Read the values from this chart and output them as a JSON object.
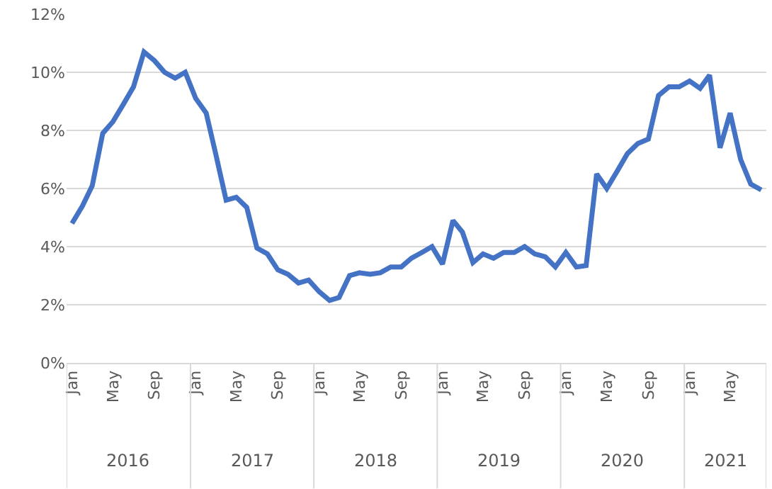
{
  "chart_data": {
    "type": "line",
    "x": [
      "2016-01",
      "2016-02",
      "2016-03",
      "2016-04",
      "2016-05",
      "2016-06",
      "2016-07",
      "2016-08",
      "2016-09",
      "2016-10",
      "2016-11",
      "2016-12",
      "2017-01",
      "2017-02",
      "2017-03",
      "2017-04",
      "2017-05",
      "2017-06",
      "2017-07",
      "2017-08",
      "2017-09",
      "2017-10",
      "2017-11",
      "2017-12",
      "2018-01",
      "2018-02",
      "2018-03",
      "2018-04",
      "2018-05",
      "2018-06",
      "2018-07",
      "2018-08",
      "2018-09",
      "2018-10",
      "2018-11",
      "2018-12",
      "2019-01",
      "2019-02",
      "2019-03",
      "2019-04",
      "2019-05",
      "2019-06",
      "2019-07",
      "2019-08",
      "2019-09",
      "2019-10",
      "2019-11",
      "2019-12",
      "2020-01",
      "2020-02",
      "2020-03",
      "2020-04",
      "2020-05",
      "2020-06",
      "2020-07",
      "2020-08",
      "2020-09",
      "2020-10",
      "2020-11",
      "2020-12",
      "2021-01",
      "2021-02",
      "2021-03",
      "2021-04",
      "2021-05",
      "2021-06",
      "2021-07",
      "2021-08"
    ],
    "series": [
      {
        "color": "#4472c4",
        "values": [
          4.8,
          5.4,
          6.1,
          7.9,
          8.3,
          8.9,
          9.5,
          10.7,
          10.4,
          10.0,
          9.8,
          10.0,
          9.1,
          8.6,
          7.2,
          5.6,
          5.7,
          5.35,
          3.95,
          3.75,
          3.2,
          3.05,
          2.75,
          2.85,
          2.45,
          2.15,
          2.25,
          3.0,
          3.1,
          3.05,
          3.1,
          3.3,
          3.3,
          3.6,
          3.8,
          4.0,
          3.4,
          4.9,
          4.5,
          3.45,
          3.75,
          3.6,
          3.8,
          3.8,
          4.0,
          3.75,
          3.65,
          3.3,
          3.8,
          3.3,
          3.35,
          6.5,
          6.0,
          6.6,
          7.2,
          7.55,
          7.7,
          9.2,
          9.5,
          9.5,
          9.7,
          9.45,
          9.9,
          7.4,
          8.6,
          7.0,
          6.15,
          5.95
        ]
      }
    ],
    "xlim": [
      "2015-12-16",
      "2021-08-16"
    ],
    "xticks": [
      {
        "value": "2016-01",
        "label": "Jan"
      },
      {
        "value": "2016-05",
        "label": "May"
      },
      {
        "value": "2016-09",
        "label": "Sep"
      },
      {
        "value": "2017-01",
        "label": "Jan"
      },
      {
        "value": "2017-05",
        "label": "May"
      },
      {
        "value": "2017-09",
        "label": "Sep"
      },
      {
        "value": "2018-01",
        "label": "Jan"
      },
      {
        "value": "2018-05",
        "label": "May"
      },
      {
        "value": "2018-09",
        "label": "Sep"
      },
      {
        "value": "2019-01",
        "label": "Jan"
      },
      {
        "value": "2019-05",
        "label": "May"
      },
      {
        "value": "2019-09",
        "label": "Sep"
      },
      {
        "value": "2020-01",
        "label": "Jan"
      },
      {
        "value": "2020-05",
        "label": "May"
      },
      {
        "value": "2020-09",
        "label": "Sep"
      },
      {
        "value": "2021-01",
        "label": "Jan"
      },
      {
        "value": "2021-05",
        "label": "May"
      }
    ],
    "ylim": [
      0,
      12
    ],
    "yticks": [
      {
        "value": 0,
        "label": "0%"
      },
      {
        "value": 2,
        "label": "2%"
      },
      {
        "value": 4,
        "label": "4%"
      },
      {
        "value": 6,
        "label": "6%"
      },
      {
        "value": 8,
        "label": "8%"
      },
      {
        "value": 10,
        "label": "10%"
      },
      {
        "value": 12,
        "label": "12%"
      }
    ],
    "annotations": [
      "2016",
      "2017",
      "2018",
      "2019",
      "2020",
      "2021"
    ],
    "grid": "y",
    "marker": "none",
    "line_style": "solid"
  }
}
